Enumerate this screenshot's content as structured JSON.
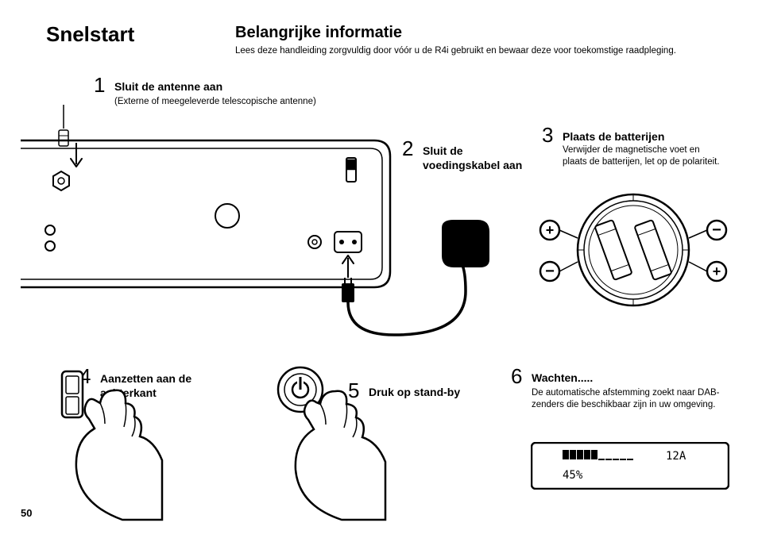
{
  "titles": {
    "main": "Snelstart",
    "info": "Belangrijke informatie",
    "info_sub": "Lees deze handleiding zorgvuldig door vóór u de R4i gebruikt en bewaar deze voor toekomstige raadpleging."
  },
  "steps": {
    "s1": {
      "num": "1",
      "title": "Sluit de antenne aan",
      "sub": "(Externe of meegeleverde telescopische antenne)"
    },
    "s2": {
      "num": "2",
      "title": "Sluit de voedingskabel aan"
    },
    "s3": {
      "num": "3",
      "title": "Plaats de batterijen",
      "sub": "Verwijder de magnetische voet en plaats de batterijen, let op de polariteit."
    },
    "s4": {
      "num": "4",
      "title": "Aanzetten aan de achterkant"
    },
    "s5": {
      "num": "5",
      "title": "Druk op stand-by"
    },
    "s6": {
      "num": "6",
      "title": "Wachten.....",
      "sub": "De automatische afstemming zoekt naar DAB-zenders die beschikbaar zijn in uw omgeving."
    }
  },
  "lcd": {
    "bar_filled": 5,
    "bar_total": 10,
    "channel": "12A",
    "percent": "45%"
  },
  "polarity": {
    "tl": "+",
    "tr": "−",
    "bl": "−",
    "br": "+"
  },
  "page": "50",
  "colors": {
    "stroke": "#000000",
    "bg": "#ffffff"
  }
}
